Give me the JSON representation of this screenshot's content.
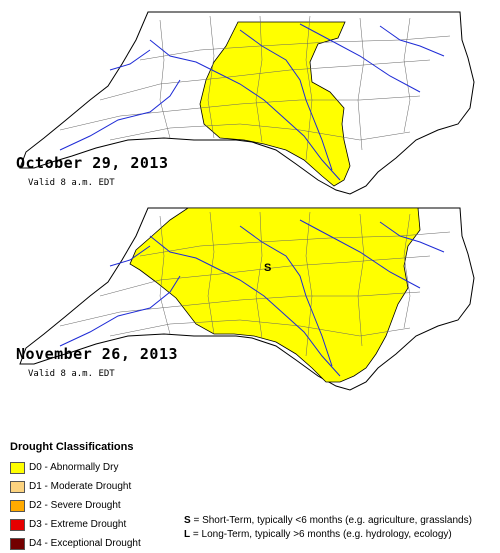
{
  "maps": [
    {
      "date": "October 29, 2013",
      "valid": "Valid 8 a.m. EDT"
    },
    {
      "date": "November 26, 2013",
      "valid": "Valid 8 a.m. EDT",
      "region_label": "S"
    }
  ],
  "legend": {
    "title": "Drought Classifications",
    "items": [
      {
        "label": "D0 - Abnormally Dry",
        "color": "#ffff00"
      },
      {
        "label": "D1 - Moderate Drought",
        "color": "#fcd37f"
      },
      {
        "label": "D2 - Severe Drought",
        "color": "#ffaa00"
      },
      {
        "label": "D3 - Extreme Drought",
        "color": "#e60000"
      },
      {
        "label": "D4 - Exceptional Drought",
        "color": "#730000"
      }
    ]
  },
  "notes": [
    {
      "key": "S",
      "text": " = Short-Term, typically <6 months (e.g. agriculture, grasslands)"
    },
    {
      "key": "L",
      "text": " = Long-Term, typically >6 months (e.g. hydrology, ecology)"
    }
  ]
}
